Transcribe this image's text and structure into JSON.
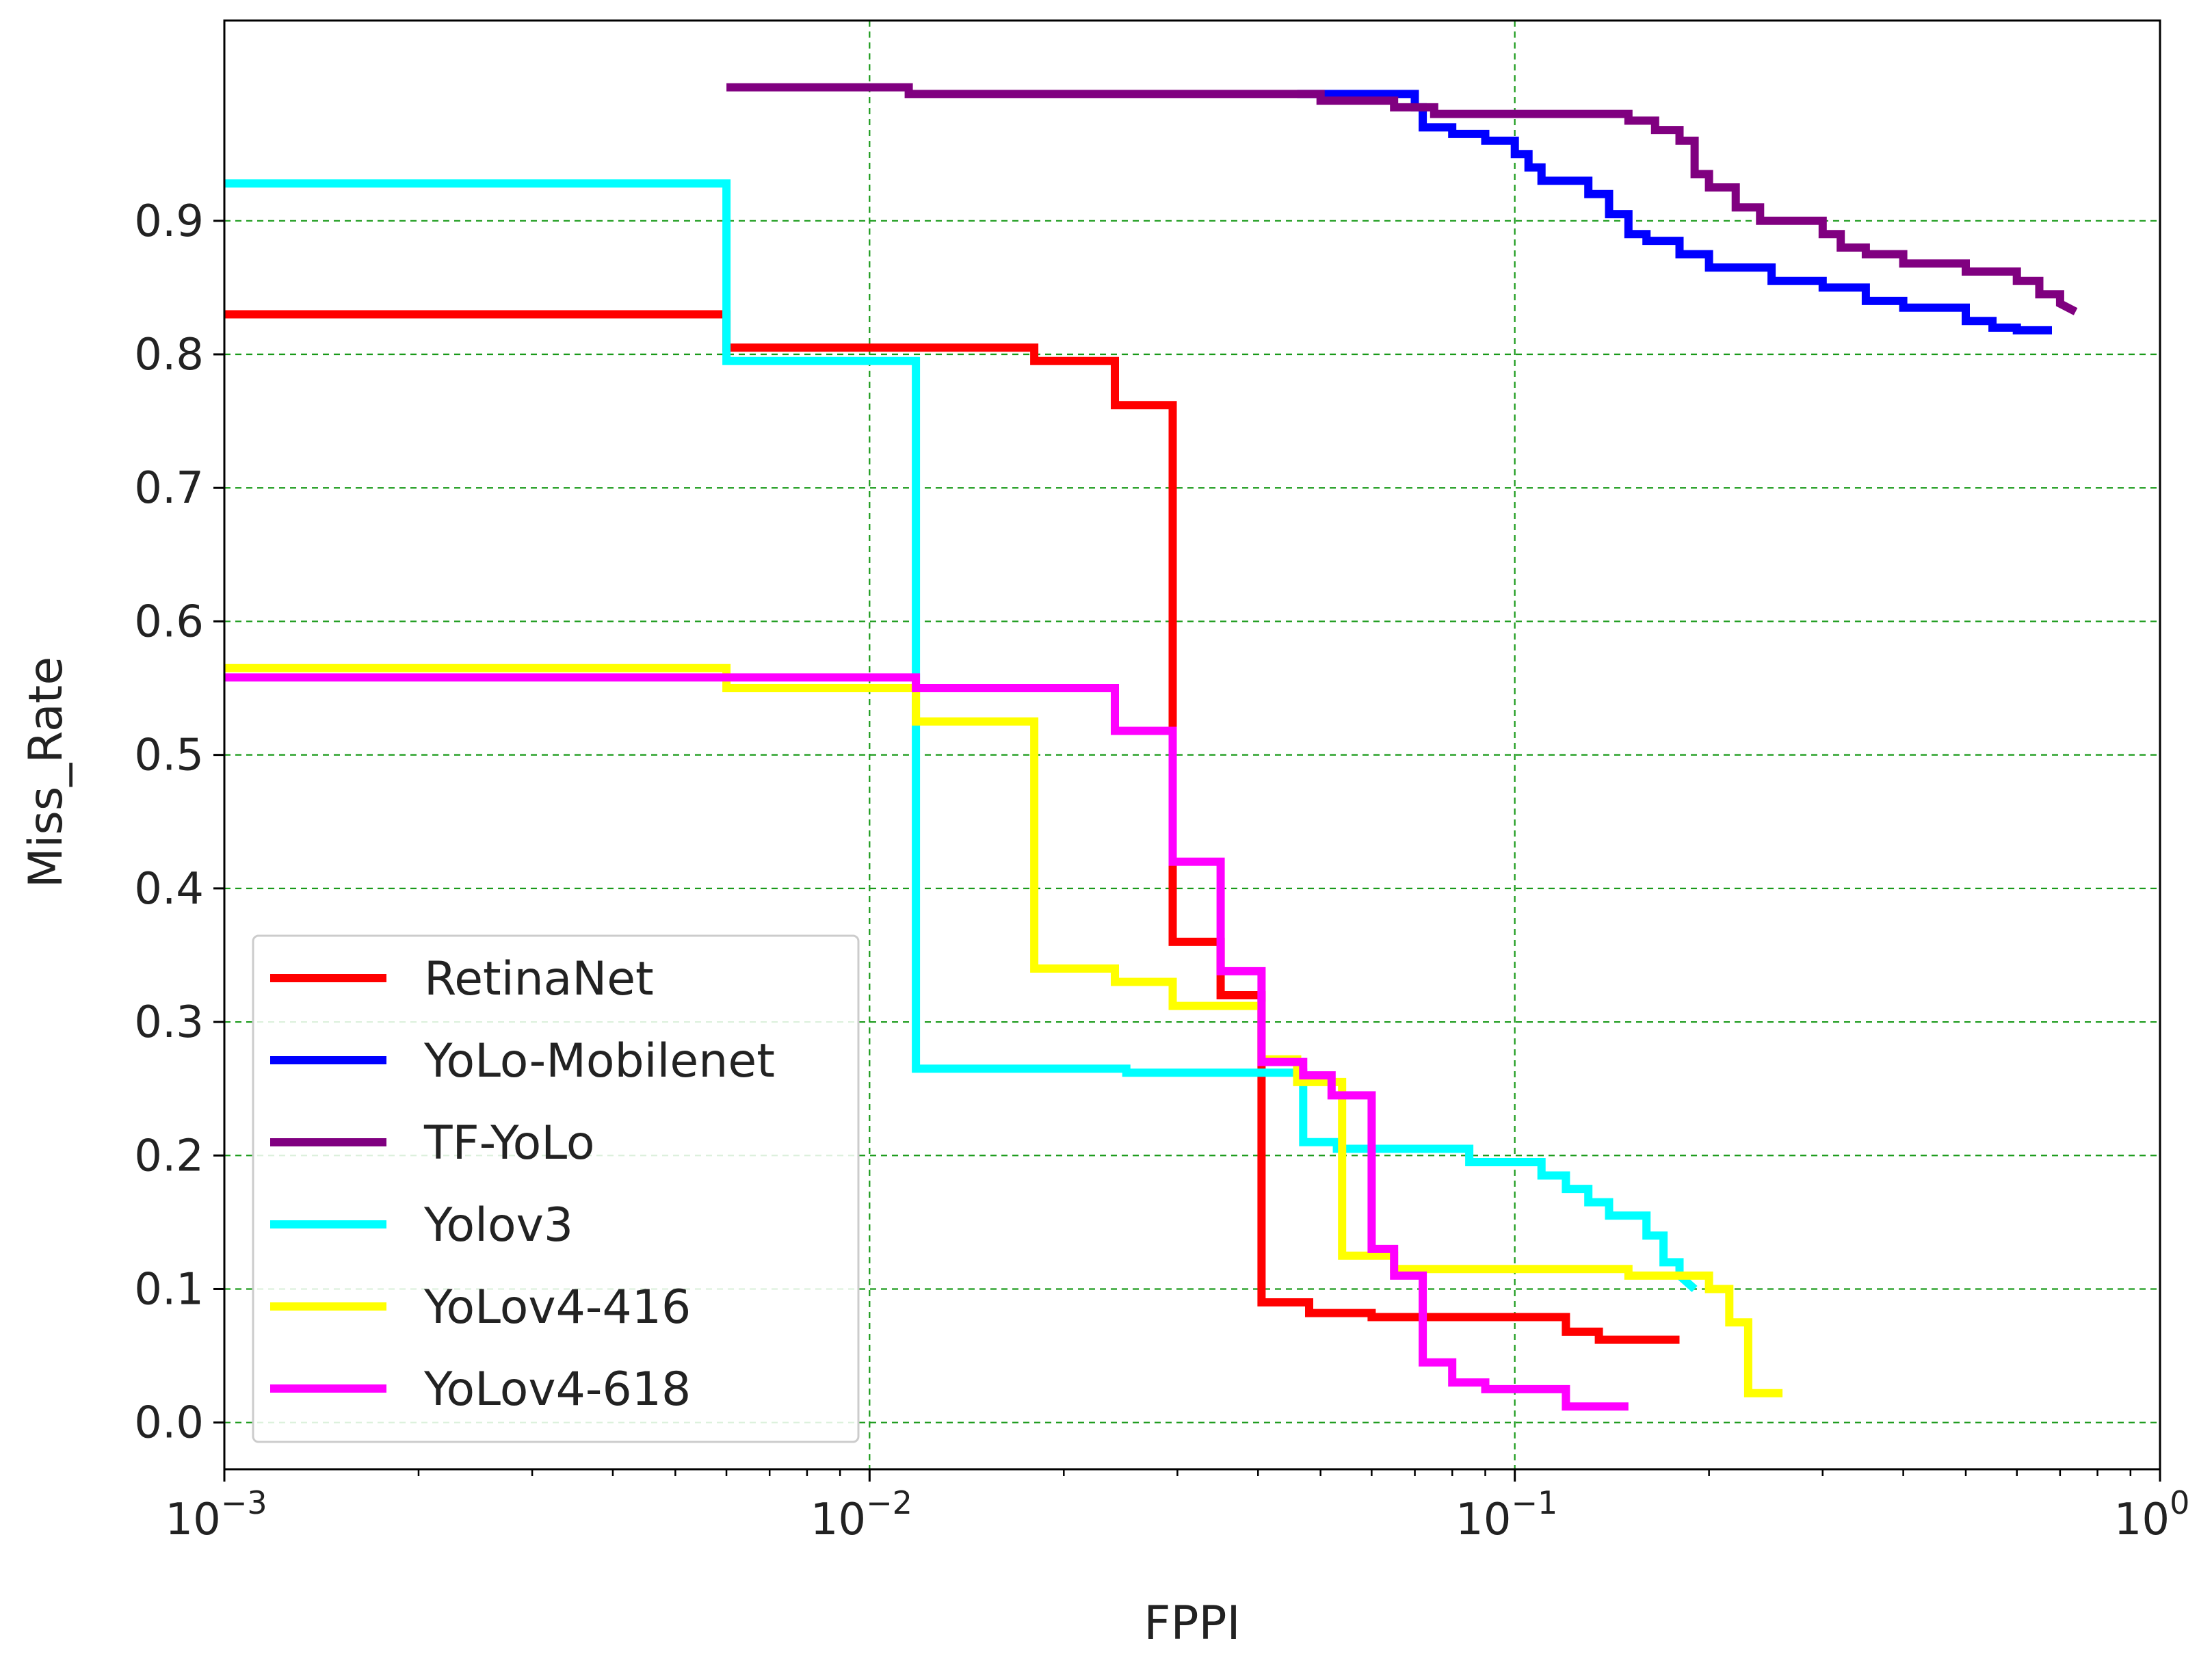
{
  "chart_data": {
    "type": "line",
    "title": "",
    "xlabel": "FPPI",
    "ylabel": "Miss_Rate",
    "xscale": "log",
    "xlim": [
      0.001,
      1
    ],
    "ylim": [
      -0.035,
      1.05
    ],
    "grid": true,
    "x_ticks": [
      {
        "value": 0.001,
        "base": "10",
        "exp": "−3"
      },
      {
        "value": 0.01,
        "base": "10",
        "exp": "−2"
      },
      {
        "value": 0.1,
        "base": "10",
        "exp": "−1"
      },
      {
        "value": 1,
        "base": "10",
        "exp": "0"
      }
    ],
    "y_ticks": [
      {
        "value": 0.0,
        "label": "0.0"
      },
      {
        "value": 0.1,
        "label": "0.1"
      },
      {
        "value": 0.2,
        "label": "0.2"
      },
      {
        "value": 0.3,
        "label": "0.3"
      },
      {
        "value": 0.4,
        "label": "0.4"
      },
      {
        "value": 0.5,
        "label": "0.5"
      },
      {
        "value": 0.6,
        "label": "0.6"
      },
      {
        "value": 0.7,
        "label": "0.7"
      },
      {
        "value": 0.8,
        "label": "0.8"
      },
      {
        "value": 0.9,
        "label": "0.9"
      }
    ],
    "legend": {
      "position": "lower-left"
    },
    "series": [
      {
        "name": "RetinaNet",
        "color": "#ff0000",
        "points": [
          [
            0.001,
            0.83
          ],
          [
            0.006,
            0.83
          ],
          [
            0.006,
            0.805
          ],
          [
            0.018,
            0.805
          ],
          [
            0.018,
            0.795
          ],
          [
            0.024,
            0.795
          ],
          [
            0.024,
            0.762
          ],
          [
            0.0295,
            0.762
          ],
          [
            0.0295,
            0.36
          ],
          [
            0.035,
            0.36
          ],
          [
            0.035,
            0.32
          ],
          [
            0.0405,
            0.32
          ],
          [
            0.0405,
            0.09
          ],
          [
            0.048,
            0.09
          ],
          [
            0.048,
            0.082
          ],
          [
            0.06,
            0.082
          ],
          [
            0.06,
            0.079
          ],
          [
            0.12,
            0.079
          ],
          [
            0.12,
            0.068
          ],
          [
            0.135,
            0.068
          ],
          [
            0.135,
            0.062
          ],
          [
            0.18,
            0.062
          ]
        ]
      },
      {
        "name": "YoLo-Mobilenet",
        "color": "#0000ff",
        "points": [
          [
            0.046,
            0.995
          ],
          [
            0.07,
            0.995
          ],
          [
            0.07,
            0.985
          ],
          [
            0.072,
            0.985
          ],
          [
            0.072,
            0.97
          ],
          [
            0.08,
            0.97
          ],
          [
            0.08,
            0.965
          ],
          [
            0.09,
            0.965
          ],
          [
            0.09,
            0.96
          ],
          [
            0.1,
            0.96
          ],
          [
            0.1,
            0.95
          ],
          [
            0.105,
            0.95
          ],
          [
            0.105,
            0.94
          ],
          [
            0.11,
            0.94
          ],
          [
            0.11,
            0.93
          ],
          [
            0.13,
            0.93
          ],
          [
            0.13,
            0.92
          ],
          [
            0.14,
            0.92
          ],
          [
            0.14,
            0.905
          ],
          [
            0.15,
            0.905
          ],
          [
            0.15,
            0.89
          ],
          [
            0.16,
            0.89
          ],
          [
            0.16,
            0.885
          ],
          [
            0.18,
            0.885
          ],
          [
            0.18,
            0.875
          ],
          [
            0.2,
            0.875
          ],
          [
            0.2,
            0.865
          ],
          [
            0.25,
            0.865
          ],
          [
            0.25,
            0.855
          ],
          [
            0.3,
            0.855
          ],
          [
            0.3,
            0.85
          ],
          [
            0.35,
            0.85
          ],
          [
            0.35,
            0.84
          ],
          [
            0.4,
            0.84
          ],
          [
            0.4,
            0.835
          ],
          [
            0.5,
            0.835
          ],
          [
            0.5,
            0.825
          ],
          [
            0.55,
            0.825
          ],
          [
            0.55,
            0.82
          ],
          [
            0.6,
            0.82
          ],
          [
            0.6,
            0.818
          ],
          [
            0.68,
            0.818
          ]
        ]
      },
      {
        "name": "TF-YoLo",
        "color": "#800080",
        "points": [
          [
            0.006,
            1.0
          ],
          [
            0.0115,
            1.0
          ],
          [
            0.0115,
            0.995
          ],
          [
            0.05,
            0.995
          ],
          [
            0.05,
            0.99
          ],
          [
            0.065,
            0.99
          ],
          [
            0.065,
            0.985
          ],
          [
            0.075,
            0.985
          ],
          [
            0.075,
            0.98
          ],
          [
            0.15,
            0.98
          ],
          [
            0.15,
            0.975
          ],
          [
            0.165,
            0.975
          ],
          [
            0.165,
            0.968
          ],
          [
            0.18,
            0.968
          ],
          [
            0.18,
            0.96
          ],
          [
            0.19,
            0.96
          ],
          [
            0.19,
            0.935
          ],
          [
            0.2,
            0.935
          ],
          [
            0.2,
            0.925
          ],
          [
            0.22,
            0.925
          ],
          [
            0.22,
            0.91
          ],
          [
            0.24,
            0.91
          ],
          [
            0.24,
            0.9
          ],
          [
            0.3,
            0.9
          ],
          [
            0.3,
            0.89
          ],
          [
            0.32,
            0.89
          ],
          [
            0.32,
            0.88
          ],
          [
            0.35,
            0.88
          ],
          [
            0.35,
            0.875
          ],
          [
            0.4,
            0.875
          ],
          [
            0.4,
            0.868
          ],
          [
            0.5,
            0.868
          ],
          [
            0.5,
            0.862
          ],
          [
            0.6,
            0.862
          ],
          [
            0.6,
            0.855
          ],
          [
            0.65,
            0.855
          ],
          [
            0.65,
            0.845
          ],
          [
            0.7,
            0.845
          ],
          [
            0.7,
            0.838
          ],
          [
            0.74,
            0.832
          ]
        ]
      },
      {
        "name": "Yolov3",
        "color": "#00ffff",
        "points": [
          [
            0.001,
            0.928
          ],
          [
            0.006,
            0.928
          ],
          [
            0.006,
            0.795
          ],
          [
            0.0118,
            0.795
          ],
          [
            0.0118,
            0.265
          ],
          [
            0.025,
            0.265
          ],
          [
            0.025,
            0.262
          ],
          [
            0.047,
            0.262
          ],
          [
            0.047,
            0.21
          ],
          [
            0.053,
            0.21
          ],
          [
            0.053,
            0.205
          ],
          [
            0.085,
            0.205
          ],
          [
            0.085,
            0.195
          ],
          [
            0.11,
            0.195
          ],
          [
            0.11,
            0.185
          ],
          [
            0.12,
            0.185
          ],
          [
            0.12,
            0.175
          ],
          [
            0.13,
            0.175
          ],
          [
            0.13,
            0.165
          ],
          [
            0.14,
            0.165
          ],
          [
            0.14,
            0.155
          ],
          [
            0.16,
            0.155
          ],
          [
            0.16,
            0.14
          ],
          [
            0.17,
            0.14
          ],
          [
            0.17,
            0.12
          ],
          [
            0.18,
            0.12
          ],
          [
            0.18,
            0.11
          ],
          [
            0.19,
            0.1
          ]
        ]
      },
      {
        "name": "YoLov4-416",
        "color": "#ffff00",
        "points": [
          [
            0.001,
            0.565
          ],
          [
            0.006,
            0.565
          ],
          [
            0.006,
            0.55
          ],
          [
            0.0118,
            0.55
          ],
          [
            0.0118,
            0.525
          ],
          [
            0.018,
            0.525
          ],
          [
            0.018,
            0.34
          ],
          [
            0.024,
            0.34
          ],
          [
            0.024,
            0.33
          ],
          [
            0.0295,
            0.33
          ],
          [
            0.0295,
            0.312
          ],
          [
            0.0405,
            0.312
          ],
          [
            0.0405,
            0.272
          ],
          [
            0.046,
            0.272
          ],
          [
            0.046,
            0.255
          ],
          [
            0.054,
            0.255
          ],
          [
            0.054,
            0.125
          ],
          [
            0.065,
            0.125
          ],
          [
            0.065,
            0.115
          ],
          [
            0.15,
            0.115
          ],
          [
            0.15,
            0.11
          ],
          [
            0.2,
            0.11
          ],
          [
            0.2,
            0.1
          ],
          [
            0.215,
            0.1
          ],
          [
            0.215,
            0.075
          ],
          [
            0.23,
            0.075
          ],
          [
            0.23,
            0.022
          ],
          [
            0.26,
            0.022
          ]
        ]
      },
      {
        "name": "YoLov4-618",
        "color": "#ff00ff",
        "points": [
          [
            0.001,
            0.558
          ],
          [
            0.0118,
            0.558
          ],
          [
            0.0118,
            0.55
          ],
          [
            0.024,
            0.55
          ],
          [
            0.024,
            0.518
          ],
          [
            0.0295,
            0.518
          ],
          [
            0.0295,
            0.42
          ],
          [
            0.035,
            0.42
          ],
          [
            0.035,
            0.338
          ],
          [
            0.0405,
            0.338
          ],
          [
            0.0405,
            0.27
          ],
          [
            0.047,
            0.27
          ],
          [
            0.047,
            0.26
          ],
          [
            0.052,
            0.26
          ],
          [
            0.052,
            0.245
          ],
          [
            0.06,
            0.245
          ],
          [
            0.06,
            0.13
          ],
          [
            0.065,
            0.13
          ],
          [
            0.065,
            0.11
          ],
          [
            0.072,
            0.11
          ],
          [
            0.072,
            0.045
          ],
          [
            0.08,
            0.045
          ],
          [
            0.08,
            0.03
          ],
          [
            0.09,
            0.03
          ],
          [
            0.09,
            0.025
          ],
          [
            0.12,
            0.025
          ],
          [
            0.12,
            0.012
          ],
          [
            0.15,
            0.012
          ]
        ]
      }
    ]
  }
}
